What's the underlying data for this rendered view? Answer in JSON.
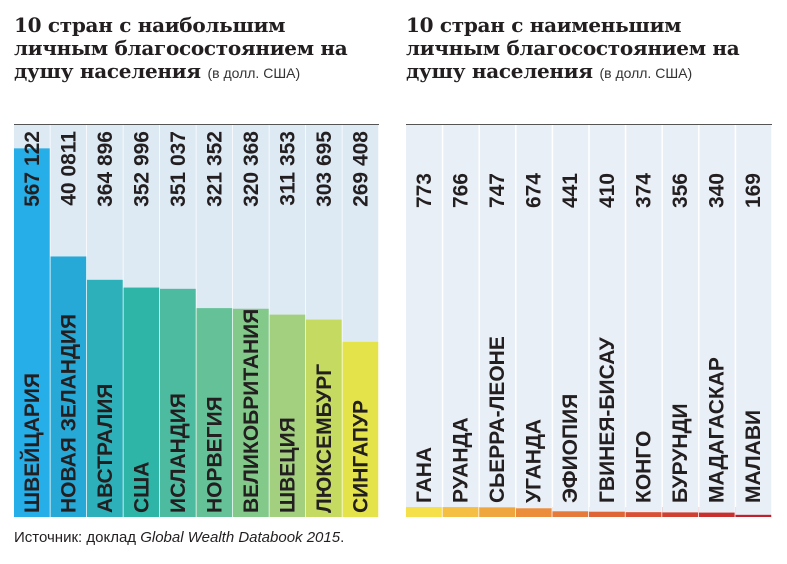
{
  "left": {
    "title": "10 стран с наибольшим личным благосостоянием на душу населения",
    "unit": "(в долл. США)"
  },
  "right": {
    "title": "10 стран с наименьшим личным благосостоянием на душу населения",
    "unit": "(в долл. США)"
  },
  "source": {
    "prefix": "Источник: доклад ",
    "name": "Global Wealth Databook 2015",
    "suffix": "."
  },
  "chart_data": [
    {
      "type": "bar",
      "title": "10 стран с наибольшим личным благосостоянием на душу населения",
      "categories": [
        "ШВЕЙЦАРИЯ",
        "НОВАЯ ЗЕЛАНДИЯ",
        "АВСТРАЛИЯ",
        "США",
        "ИСЛАНДИЯ",
        "НОРВЕГИЯ",
        "ВЕЛИКОБРИТАНИЯ",
        "ШВЕЦИЯ",
        "ЛЮКСЕМБУРГ",
        "СИНГАПУР"
      ],
      "values": [
        567122,
        400811,
        364896,
        352996,
        351037,
        321352,
        320368,
        311353,
        303695,
        269408
      ],
      "labels": [
        "567 122",
        "40 0811",
        "364 896",
        "352 996",
        "351 037",
        "321 352",
        "320 368",
        "311 353",
        "303 695",
        "269 408"
      ],
      "colors": [
        "#25aee8",
        "#26a9d6",
        "#2db0b9",
        "#2fb5a8",
        "#4dbb9f",
        "#65c197",
        "#82c98a",
        "#a3d07f",
        "#c4da61",
        "#e4e44a"
      ],
      "ylim": [
        0,
        600000
      ]
    },
    {
      "type": "bar",
      "title": "10 стран с наименьшим личным благосостоянием на душу населения",
      "categories": [
        "ГАНА",
        "РУАНДА",
        "СЬЕРРА-ЛЕОНЕ",
        "УГАНДА",
        "ЭФИОПИЯ",
        "ГВИНЕЯ-БИСАУ",
        "КОНГО",
        "БУРУНДИ",
        "МАДАГАСКАР",
        "МАЛАВИ"
      ],
      "values": [
        773,
        766,
        747,
        674,
        441,
        410,
        374,
        356,
        340,
        169
      ],
      "colors": [
        "#f6e04a",
        "#f4bf42",
        "#f0a63f",
        "#ec8d3c",
        "#e57a3a",
        "#df6537",
        "#d95034",
        "#d13f31",
        "#c9302d",
        "#c0202a"
      ]
    }
  ]
}
